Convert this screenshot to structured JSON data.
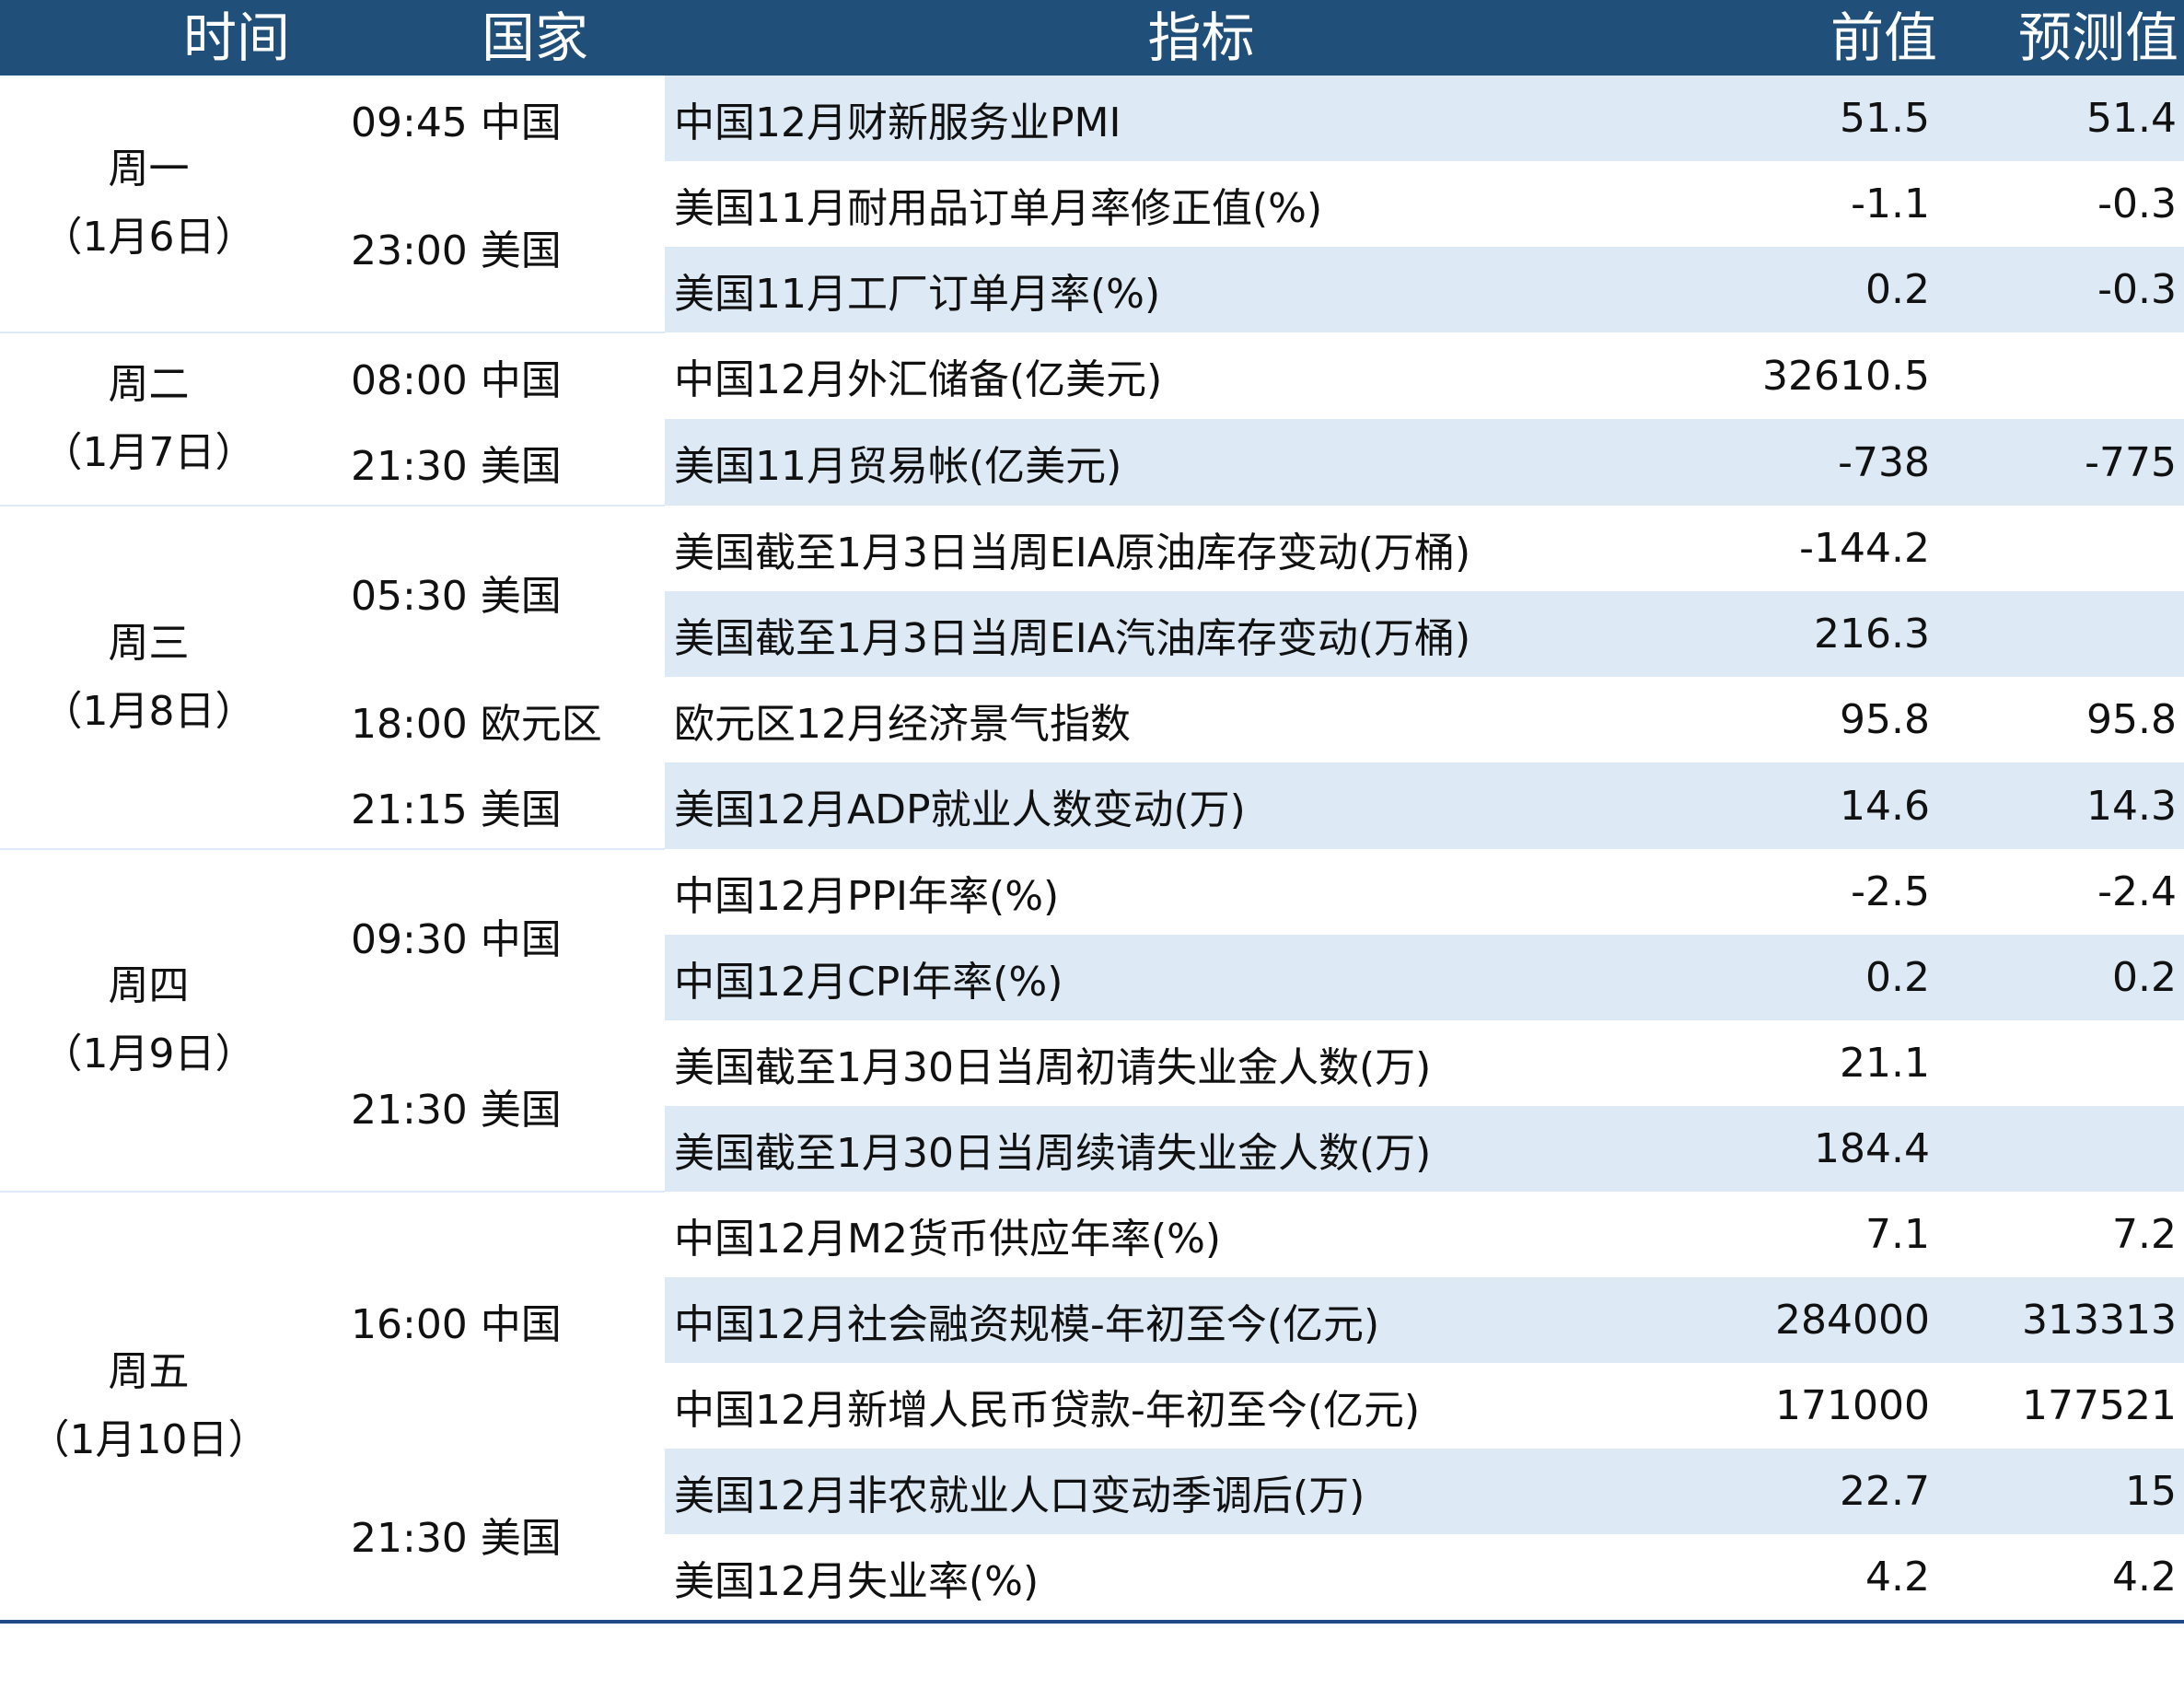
{
  "header": {
    "time": "时间",
    "country": "国家",
    "indicator": "指标",
    "previous": "前值",
    "forecast": "预测值"
  },
  "colors": {
    "header_bg": "#204f7a",
    "stripe": "#dde9f5",
    "bottom_rule": "#1f4a8a"
  },
  "days": [
    {
      "day": "周一",
      "date": "（1月6日）",
      "slots": [
        {
          "time": "09:45 中国",
          "items": [
            {
              "name": "中国12月财新服务业PMI",
              "prev": "51.5",
              "forecast": "51.4"
            }
          ]
        },
        {
          "time": "23:00 美国",
          "items": [
            {
              "name": "美国11月耐用品订单月率修正值(%)",
              "prev": "-1.1",
              "forecast": "-0.3"
            },
            {
              "name": "美国11月工厂订单月率(%)",
              "prev": "0.2",
              "forecast": "-0.3"
            }
          ]
        }
      ]
    },
    {
      "day": "周二",
      "date": "（1月7日）",
      "slots": [
        {
          "time": "08:00 中国",
          "items": [
            {
              "name": "中国12月外汇储备(亿美元)",
              "prev": "32610.5",
              "forecast": ""
            }
          ]
        },
        {
          "time": "21:30 美国",
          "items": [
            {
              "name": "美国11月贸易帐(亿美元)",
              "prev": "-738",
              "forecast": "-775"
            }
          ]
        }
      ]
    },
    {
      "day": "周三",
      "date": "（1月8日）",
      "slots": [
        {
          "time": "05:30 美国",
          "items": [
            {
              "name": "美国截至1月3日当周EIA原油库存变动(万桶)",
              "prev": "-144.2",
              "forecast": ""
            },
            {
              "name": "美国截至1月3日当周EIA汽油库存变动(万桶)",
              "prev": "216.3",
              "forecast": ""
            }
          ]
        },
        {
          "time": "18:00 欧元区",
          "items": [
            {
              "name": "欧元区12月经济景气指数",
              "prev": "95.8",
              "forecast": "95.8"
            }
          ]
        },
        {
          "time": "21:15 美国",
          "items": [
            {
              "name": "美国12月ADP就业人数变动(万)",
              "prev": "14.6",
              "forecast": "14.3"
            }
          ]
        }
      ]
    },
    {
      "day": "周四",
      "date": "（1月9日）",
      "slots": [
        {
          "time": "09:30 中国",
          "items": [
            {
              "name": "中国12月PPI年率(%)",
              "prev": "-2.5",
              "forecast": "-2.4"
            },
            {
              "name": "中国12月CPI年率(%)",
              "prev": "0.2",
              "forecast": "0.2"
            }
          ]
        },
        {
          "time": "21:30 美国",
          "items": [
            {
              "name": "美国截至1月30日当周初请失业金人数(万)",
              "prev": "21.1",
              "forecast": ""
            },
            {
              "name": "美国截至1月30日当周续请失业金人数(万)",
              "prev": "184.4",
              "forecast": ""
            }
          ]
        }
      ]
    },
    {
      "day": "周五",
      "date": "（1月10日）",
      "slots": [
        {
          "time": "16:00 中国",
          "items": [
            {
              "name": "中国12月M2货币供应年率(%)",
              "prev": "7.1",
              "forecast": "7.2"
            },
            {
              "name": "中国12月社会融资规模-年初至今(亿元)",
              "prev": "284000",
              "forecast": "313313"
            },
            {
              "name": "中国12月新增人民币贷款-年初至今(亿元)",
              "prev": "171000",
              "forecast": "177521"
            }
          ]
        },
        {
          "time": "21:30 美国",
          "items": [
            {
              "name": "美国12月非农就业人口变动季调后(万)",
              "prev": "22.7",
              "forecast": "15"
            },
            {
              "name": "美国12月失业率(%)",
              "prev": "4.2",
              "forecast": "4.2"
            }
          ]
        }
      ]
    }
  ]
}
